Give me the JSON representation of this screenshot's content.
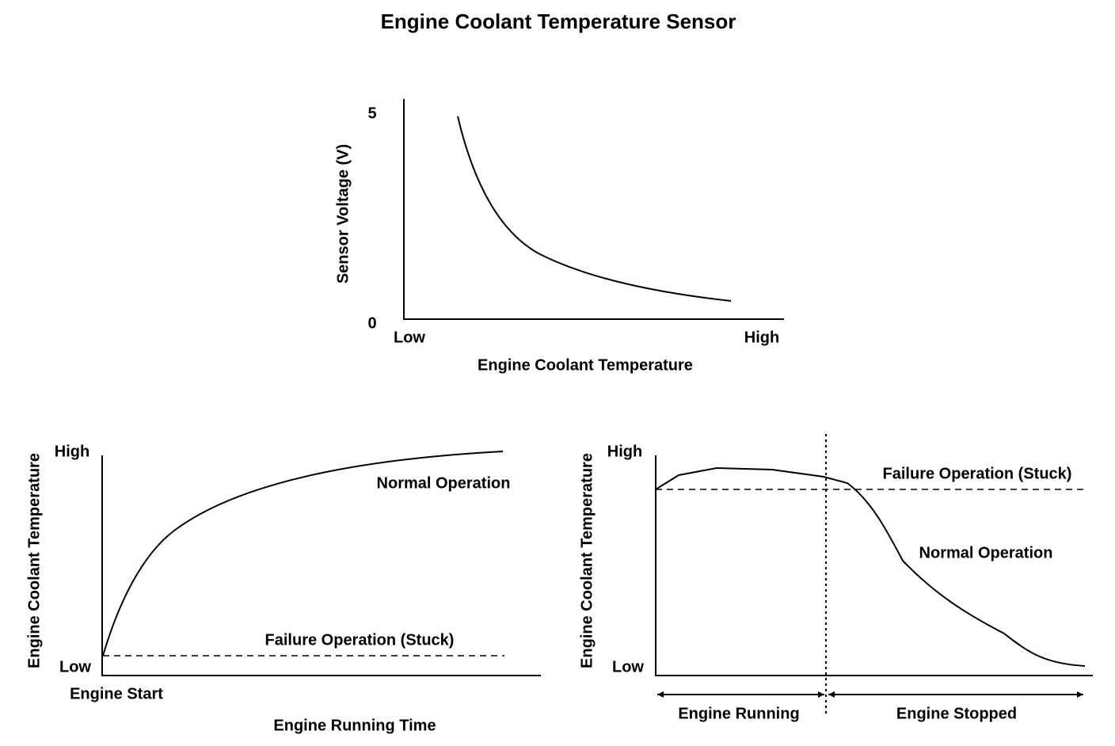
{
  "title": "Engine Coolant Temperature Sensor",
  "top_chart": {
    "y_axis_label": "Sensor Voltage (V)",
    "y_top": "5",
    "y_bottom": "0",
    "x_low": "Low",
    "x_high": "High",
    "x_axis_label": "Engine Coolant Temperature"
  },
  "left_chart": {
    "y_axis_label": "Engine Coolant Temperature",
    "y_high": "High",
    "y_low": "Low",
    "normal_label": "Normal Operation",
    "failure_label": "Failure Operation (Stuck)",
    "x_start": "Engine Start",
    "x_axis_label": "Engine Running Time"
  },
  "right_chart": {
    "y_axis_label": "Engine Coolant Temperature",
    "y_high": "High",
    "y_low": "Low",
    "failure_label": "Failure Operation (Stuck)",
    "normal_label": "Normal Operation",
    "running_label": "Engine Running",
    "stopped_label": "Engine Stopped"
  }
}
